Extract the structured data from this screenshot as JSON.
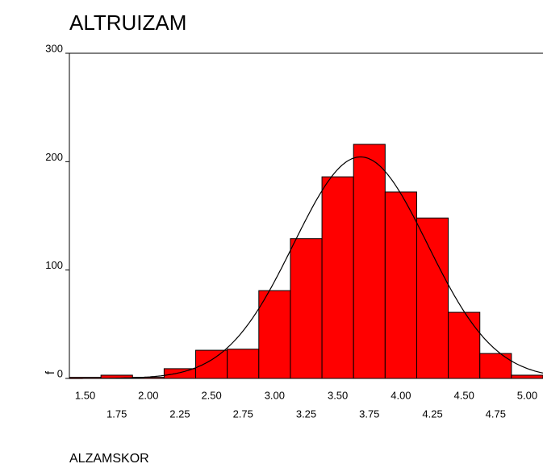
{
  "chart_data": {
    "type": "histogram",
    "title": "ALTRUIZAM",
    "xlabel": "ALZAMSKOR",
    "ylabel": "f",
    "bins": [
      1.375,
      1.625,
      1.875,
      2.125,
      2.375,
      2.625,
      2.875,
      3.125,
      3.375,
      3.625,
      3.875,
      4.125,
      4.375,
      4.625,
      4.875,
      5.125
    ],
    "values": [
      1,
      3,
      1,
      9,
      26,
      27,
      81,
      129,
      186,
      216,
      172,
      148,
      61,
      23,
      3
    ],
    "color": "#ff0000",
    "xlim": [
      1.375,
      5.125
    ],
    "ylim": [
      0,
      300
    ],
    "xticks": [
      {
        "value": 1.5,
        "label": "1.50"
      },
      {
        "value": 1.75,
        "label": "1.75"
      },
      {
        "value": 2.0,
        "label": "2.00"
      },
      {
        "value": 2.25,
        "label": "2.25"
      },
      {
        "value": 2.5,
        "label": "2.50"
      },
      {
        "value": 2.75,
        "label": "2.75"
      },
      {
        "value": 3.0,
        "label": "3.00"
      },
      {
        "value": 3.25,
        "label": "3.25"
      },
      {
        "value": 3.5,
        "label": "3.50"
      },
      {
        "value": 3.75,
        "label": "3.75"
      },
      {
        "value": 4.0,
        "label": "4.00"
      },
      {
        "value": 4.25,
        "label": "4.25"
      },
      {
        "value": 4.5,
        "label": "4.50"
      },
      {
        "value": 4.75,
        "label": "4.75"
      },
      {
        "value": 5.0,
        "label": "5.00"
      }
    ],
    "yticks": [
      0,
      100,
      200,
      300
    ],
    "normal_curve": {
      "mean": 3.68,
      "sd": 0.53
    }
  }
}
